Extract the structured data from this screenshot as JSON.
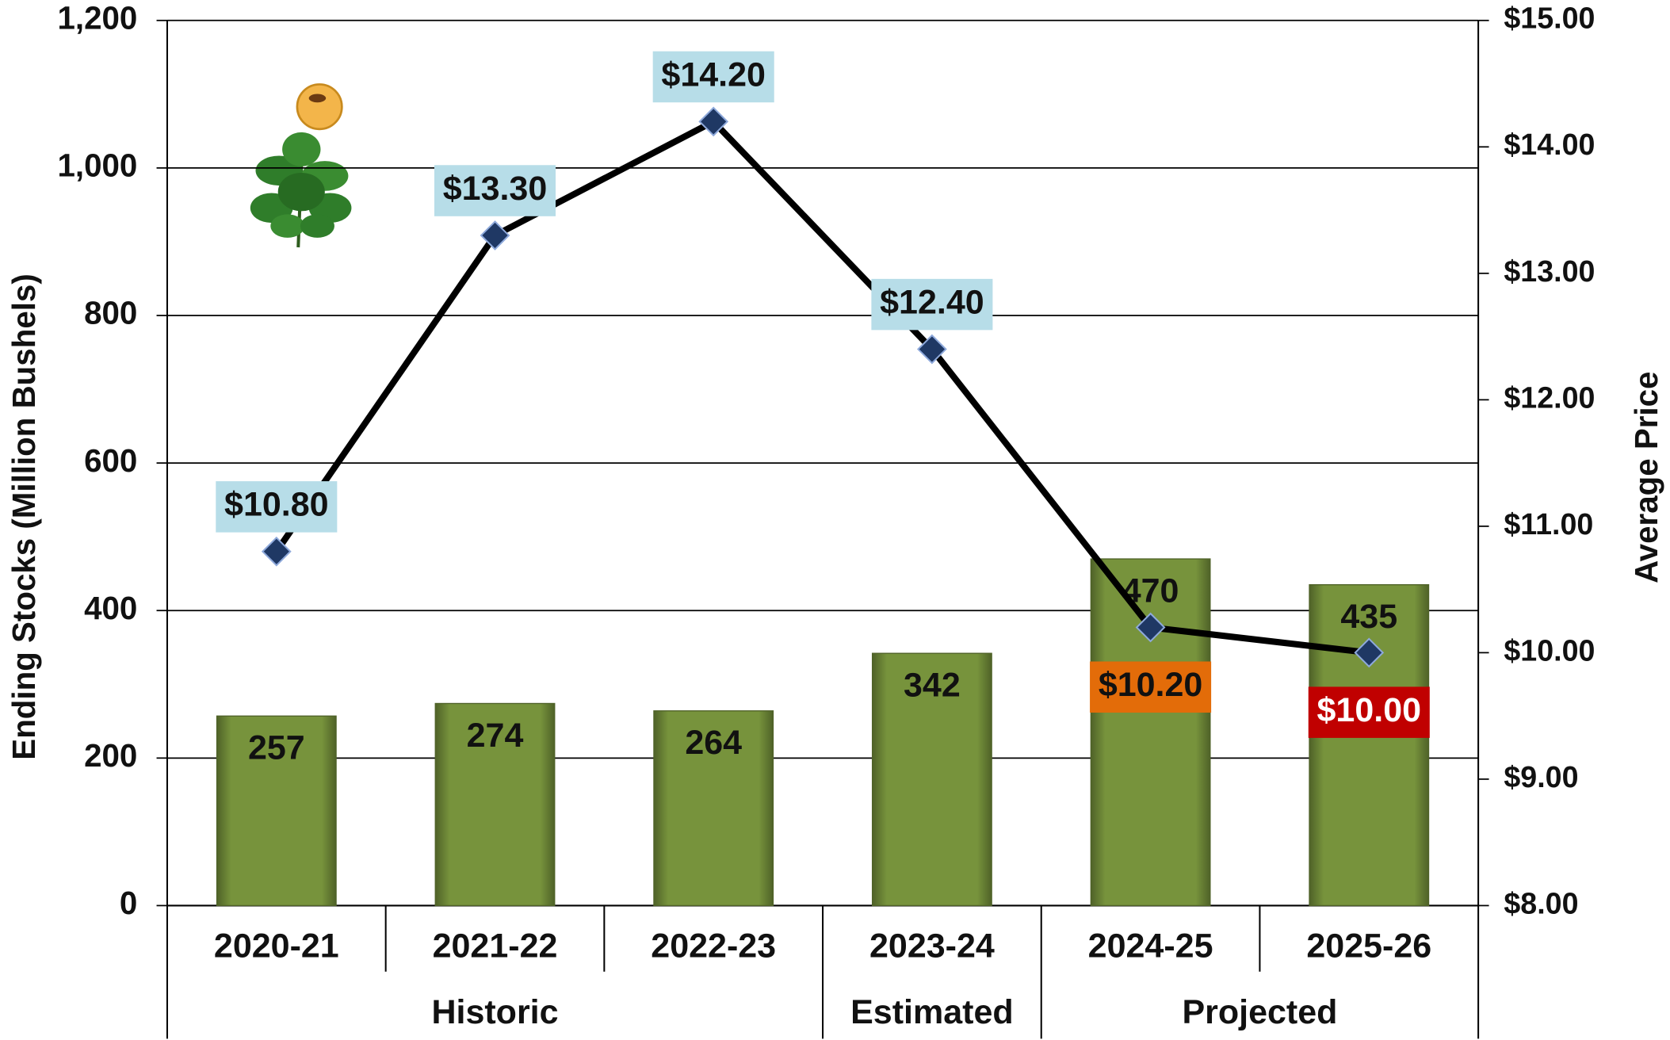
{
  "chart_data": {
    "type": "bar",
    "categories": [
      "2020-21",
      "2021-22",
      "2022-23",
      "2023-24",
      "2024-25",
      "2025-26"
    ],
    "groups": [
      {
        "label": "Historic",
        "from": 0,
        "to": 2
      },
      {
        "label": "Estimated",
        "from": 3,
        "to": 3
      },
      {
        "label": "Projected",
        "from": 4,
        "to": 5
      }
    ],
    "y_label": "Ending Stocks (Million Bushels)",
    "y2_label": "Average Price",
    "series": [
      {
        "type": "bar",
        "color": "#77933c",
        "values": [
          257,
          274,
          264,
          342,
          470,
          435
        ]
      },
      {
        "type": "line",
        "axis": "y2",
        "color": "#000000",
        "marker_color": "#1f3864",
        "label_colors": [
          "#b7dde8",
          "#b7dde8",
          "#b7dde8",
          "#b7dde8",
          "#e36c09",
          "#c00000"
        ],
        "values": [
          10.8,
          13.3,
          14.2,
          12.4,
          10.2,
          10.0
        ],
        "value_labels": [
          "$10.80",
          "$13.30",
          "$14.20",
          "$12.40",
          "$10.20",
          "$10.00"
        ]
      }
    ],
    "ylim": [
      0,
      1200
    ],
    "yticks": [
      0,
      200,
      400,
      600,
      800,
      {
        "value": 1000,
        "label": "1,000"
      },
      {
        "value": 1200,
        "label": "1,200"
      }
    ],
    "y2lim": [
      8,
      15
    ],
    "y2ticks": [
      {
        "value": 8,
        "label": "$8.00"
      },
      {
        "value": 9,
        "label": "$9.00"
      },
      {
        "value": 10,
        "label": "$10.00"
      },
      {
        "value": 11,
        "label": "$11.00"
      },
      {
        "value": 12,
        "label": "$12.00"
      },
      {
        "value": 13,
        "label": "$13.00"
      },
      {
        "value": 14,
        "label": "$14.00"
      },
      {
        "value": 15,
        "label": "$15.00"
      }
    ],
    "grid": true
  }
}
